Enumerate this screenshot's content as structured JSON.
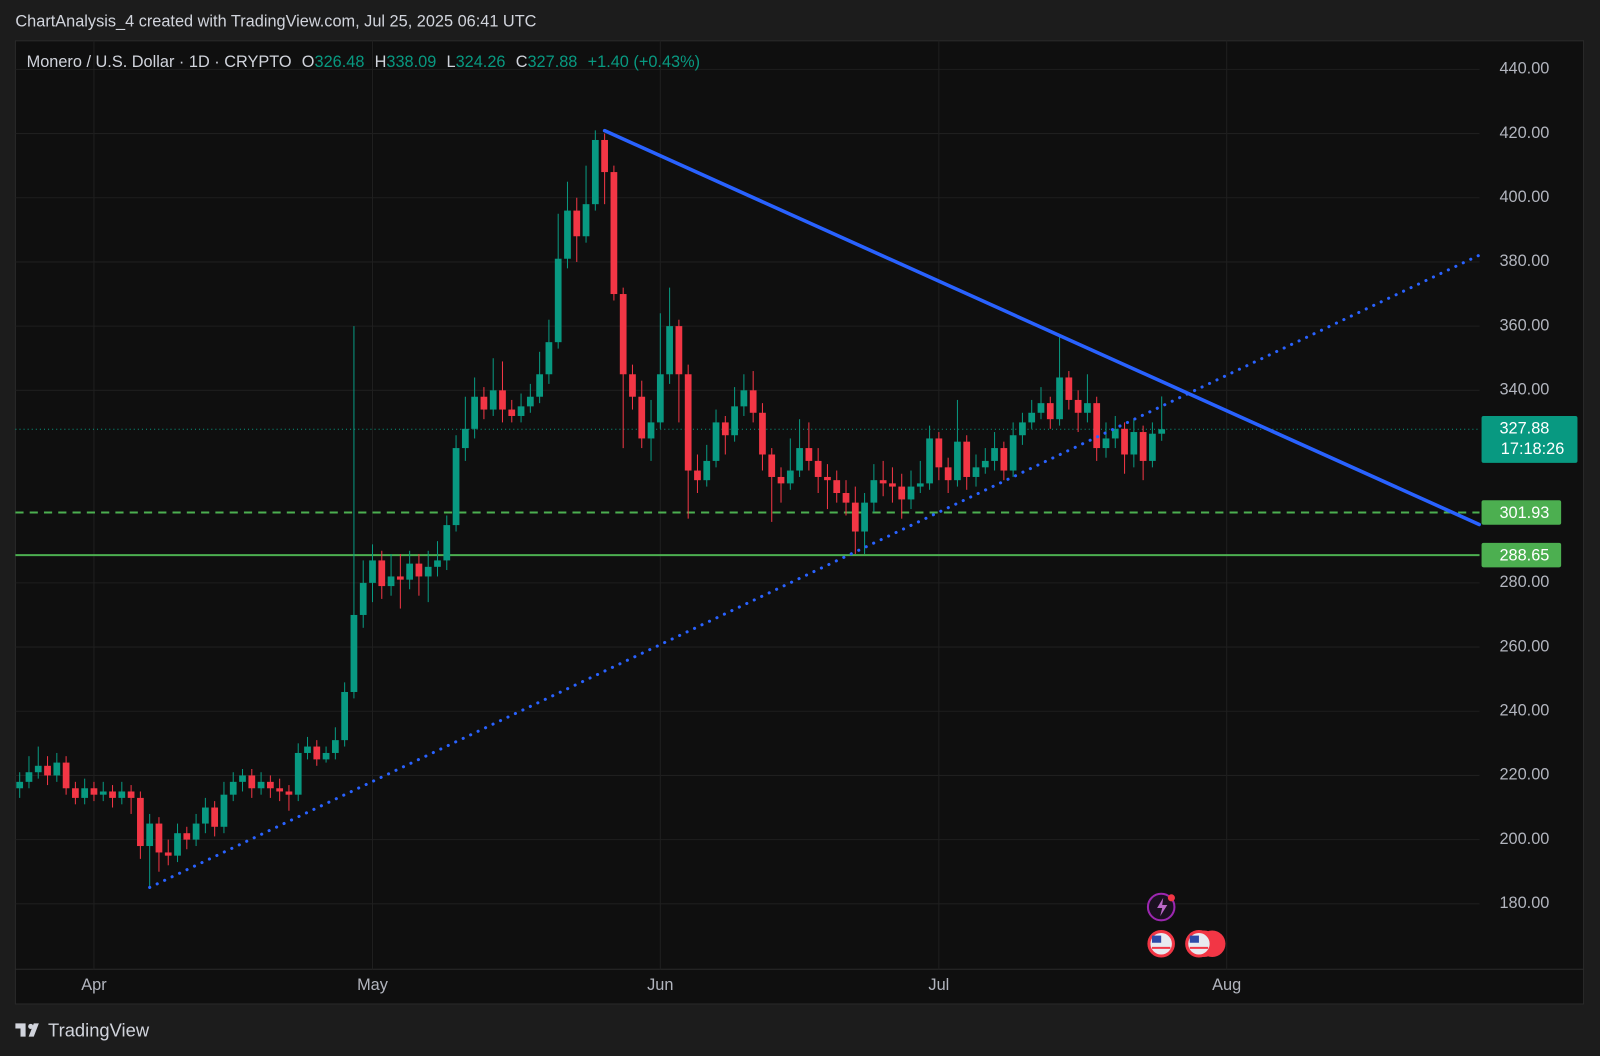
{
  "attribution": "ChartAnalysis_4 created with TradingView.com, Jul 25, 2025 06:41 UTC",
  "footer": "TradingView",
  "chart_data": {
    "type": "candlestick",
    "title": "Monero / U.S. Dollar · 1D · CRYPTO",
    "ohlc_labels": [
      "O",
      "H",
      "L",
      "C"
    ],
    "change": "+1.40 (+0.43%)",
    "countdown": "17:18:26",
    "up_color": "#089981",
    "down_color": "#f23645",
    "grid": true,
    "categories": [
      null,
      null,
      null,
      null,
      null,
      null,
      null,
      null,
      "Apr",
      null,
      null,
      null,
      null,
      null,
      null,
      null,
      null,
      null,
      null,
      null,
      null,
      null,
      null,
      null,
      null,
      null,
      null,
      null,
      null,
      null,
      null,
      null,
      null,
      null,
      null,
      null,
      null,
      null,
      "May",
      null,
      null,
      null,
      null,
      null,
      null,
      null,
      null,
      null,
      null,
      null,
      null,
      null,
      null,
      null,
      null,
      null,
      null,
      null,
      null,
      null,
      null,
      null,
      null,
      null,
      null,
      null,
      null,
      null,
      null,
      "Jun",
      null,
      null,
      null,
      null,
      null,
      null,
      null,
      null,
      null,
      null,
      null,
      null,
      null,
      null,
      null,
      null,
      null,
      null,
      null,
      null,
      null,
      null,
      null,
      null,
      null,
      null,
      null,
      null,
      null,
      "Jul",
      null,
      null,
      null,
      null,
      null,
      null,
      null,
      null,
      null,
      null,
      null,
      null,
      null,
      null,
      null,
      null,
      null,
      null,
      null,
      null,
      null,
      null,
      null,
      null,
      null,
      null,
      null,
      null,
      null,
      null,
      "Aug"
    ],
    "open": [
      216,
      218,
      221,
      223,
      220,
      224,
      216,
      213,
      216,
      214,
      215,
      213,
      215,
      213,
      198,
      205,
      196,
      195,
      202,
      200,
      205,
      210,
      204,
      214,
      218,
      220,
      216,
      218,
      216,
      215,
      214,
      227,
      229,
      225,
      227,
      231,
      246,
      270,
      280,
      287,
      279,
      282,
      281,
      286,
      282,
      285,
      287,
      298,
      322,
      328,
      338,
      334,
      340,
      334,
      332,
      335,
      338,
      345,
      355,
      381,
      396,
      388,
      398,
      418,
      408,
      370,
      345,
      338,
      325,
      330,
      345,
      360,
      345,
      315,
      312,
      318,
      330,
      326,
      335,
      340,
      333,
      320,
      313,
      311,
      315,
      322,
      318,
      313,
      312,
      308,
      305,
      296,
      305,
      312,
      311,
      310,
      306,
      310,
      311,
      325,
      316,
      312,
      324,
      313,
      316,
      318,
      322,
      315,
      326,
      330,
      333,
      336,
      331,
      344,
      337,
      333,
      336,
      322,
      325,
      328,
      320,
      327,
      318,
      326.48,
      null,
      null,
      null,
      null,
      null,
      null,
      null
    ],
    "high": [
      221,
      226,
      229,
      226,
      227,
      226,
      218,
      219,
      218,
      218,
      217,
      218,
      217,
      215,
      208,
      207,
      200,
      205,
      204,
      208,
      213,
      212,
      218,
      221,
      222,
      222,
      221,
      220,
      219,
      217,
      230,
      232,
      231,
      229,
      235,
      249,
      360,
      287,
      292,
      290,
      289,
      289,
      290,
      289,
      290,
      293,
      301,
      326,
      338,
      344,
      341,
      350,
      349,
      337,
      339,
      342,
      352,
      362,
      395,
      405,
      400,
      410,
      421,
      420,
      410,
      372,
      348,
      343,
      337,
      364,
      372,
      362,
      348,
      320,
      323,
      334,
      332,
      341,
      345,
      346,
      336,
      322,
      316,
      325,
      331,
      330,
      322,
      317,
      315,
      312,
      310,
      308,
      317,
      318,
      316,
      314,
      315,
      318,
      329,
      327,
      319,
      337,
      326,
      320,
      322,
      327,
      324,
      330,
      333,
      337,
      341,
      338,
      357,
      346,
      340,
      345,
      338,
      330,
      332,
      330,
      331,
      329,
      330,
      338.09,
      null,
      null,
      null,
      null,
      null,
      null,
      null
    ],
    "low": [
      213,
      216,
      219,
      217,
      218,
      214,
      211,
      211,
      212,
      212,
      210,
      211,
      208,
      194,
      185,
      190,
      192,
      193,
      197,
      198,
      202,
      201,
      202,
      212,
      215,
      213,
      214,
      213,
      212,
      209,
      212,
      225,
      223,
      224,
      225,
      229,
      244,
      266,
      274,
      275,
      276,
      272,
      278,
      276,
      274,
      282,
      284,
      296,
      318,
      325,
      331,
      332,
      330,
      330,
      330,
      333,
      336,
      342,
      353,
      378,
      380,
      386,
      396,
      398,
      368,
      322,
      334,
      322,
      318,
      328,
      342,
      330,
      300,
      308,
      310,
      316,
      320,
      324,
      332,
      330,
      315,
      299,
      305,
      309,
      313,
      315,
      308,
      303,
      305,
      301,
      289,
      289,
      302,
      307,
      305,
      300,
      303,
      308,
      309,
      312,
      308,
      310,
      309,
      310,
      314,
      315,
      312,
      313,
      323,
      328,
      331,
      328,
      329,
      334,
      327,
      330,
      318,
      319,
      322,
      314,
      316,
      312,
      316,
      324.26,
      null,
      null,
      null,
      null,
      null,
      null,
      null
    ],
    "close": [
      218,
      221,
      223,
      220,
      224,
      216,
      213,
      216,
      214,
      215,
      213,
      215,
      213,
      198,
      205,
      196,
      195,
      202,
      200,
      205,
      210,
      204,
      214,
      218,
      220,
      216,
      218,
      216,
      215,
      214,
      227,
      229,
      225,
      227,
      231,
      246,
      270,
      280,
      287,
      279,
      282,
      281,
      286,
      282,
      285,
      287,
      298,
      322,
      328,
      338,
      334,
      340,
      334,
      332,
      335,
      338,
      345,
      355,
      381,
      396,
      388,
      398,
      418,
      408,
      370,
      345,
      338,
      325,
      330,
      345,
      360,
      345,
      315,
      312,
      318,
      330,
      326,
      335,
      340,
      333,
      320,
      313,
      311,
      315,
      322,
      318,
      313,
      312,
      308,
      305,
      296,
      305,
      312,
      311,
      310,
      306,
      310,
      311,
      325,
      316,
      312,
      324,
      313,
      316,
      318,
      322,
      315,
      326,
      330,
      333,
      336,
      331,
      344,
      337,
      333,
      336,
      322,
      325,
      328,
      320,
      327,
      318,
      326.48,
      327.88,
      null,
      null,
      null,
      null,
      null,
      null,
      null
    ],
    "ylim": [
      159.6,
      448.9
    ],
    "yticks": [
      {
        "value": 180,
        "label": "180.00"
      },
      {
        "value": 200,
        "label": "200.00"
      },
      {
        "value": 220,
        "label": "220.00"
      },
      {
        "value": 240,
        "label": "240.00"
      },
      {
        "value": 260,
        "label": "260.00"
      },
      {
        "value": 280,
        "label": "280.00"
      },
      {
        "value": 340,
        "label": "340.00"
      },
      {
        "value": 360,
        "label": "360.00"
      },
      {
        "value": 380,
        "label": "380.00"
      },
      {
        "value": 400,
        "label": "400.00"
      },
      {
        "value": 420,
        "label": "420.00"
      },
      {
        "value": 440,
        "label": "440.00"
      }
    ],
    "levels": [
      {
        "value": 301.93,
        "color": "#4caf50",
        "style": "dashed"
      },
      {
        "value": 288.65,
        "color": "#4caf50",
        "style": "solid"
      }
    ],
    "trendlines": [
      {
        "from": [
          63,
          420.9
        ],
        "to": [
          157.2,
          298.2
        ],
        "color": "#2962ff",
        "style": "solid"
      },
      {
        "from": [
          14,
          185.1
        ],
        "to": [
          157.2,
          382.1
        ],
        "color": "#2962ff",
        "style": "dotted"
      }
    ]
  }
}
